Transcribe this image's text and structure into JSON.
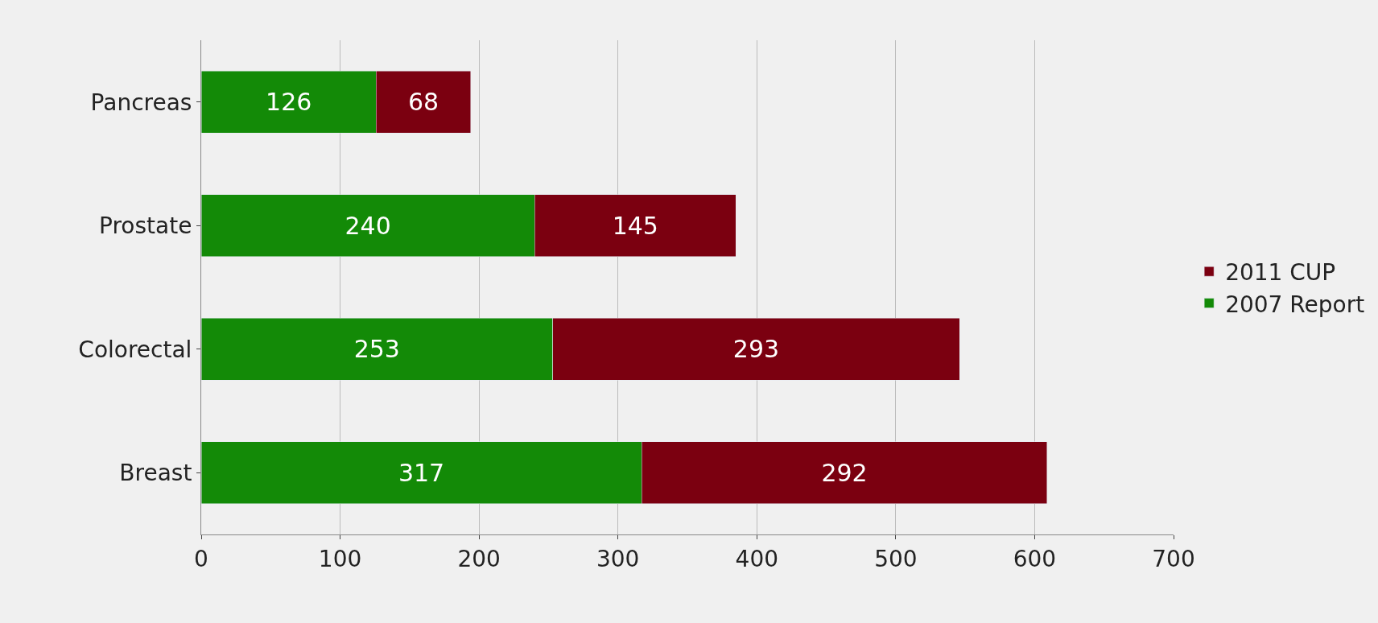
{
  "chart_data": {
    "type": "bar",
    "orientation": "horizontal",
    "stacked": true,
    "categories": [
      "Pancreas",
      "Prostate",
      "Colorectal",
      "Breast"
    ],
    "series": [
      {
        "name": "2007 Report",
        "color": "#138a07",
        "values": [
          126,
          240,
          253,
          317
        ]
      },
      {
        "name": "2011 CUP",
        "color": "#7b0010",
        "values": [
          68,
          145,
          293,
          292
        ]
      }
    ],
    "xlim": [
      0,
      700
    ],
    "xticks": [
      0,
      100,
      200,
      300,
      400,
      500,
      600,
      700
    ],
    "grid": "x",
    "legend": "right",
    "data_labels": true
  }
}
